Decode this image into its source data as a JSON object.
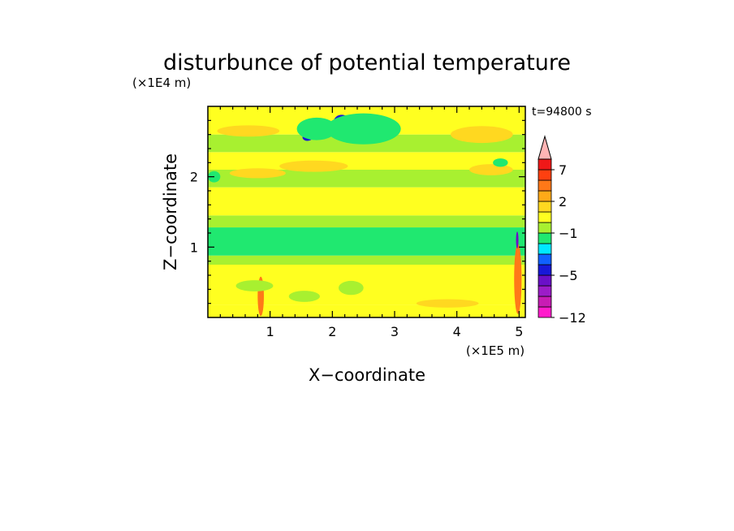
{
  "chart_data": {
    "type": "heatmap",
    "title": "disturbunce of potential temperature",
    "time_label": "t=94800 s",
    "xlabel": "X−coordinate",
    "ylabel": "Z−coordinate",
    "x_scale_label": "(×1E5 m)",
    "y_scale_label": "(×1E4 m)",
    "x_ticks": [
      "1",
      "2",
      "3",
      "4",
      "5"
    ],
    "x_tick_values": [
      1,
      2,
      3,
      4,
      5
    ],
    "y_ticks": [
      "1",
      "2"
    ],
    "y_tick_values": [
      1,
      2
    ],
    "xlim": [
      0,
      5.1
    ],
    "ylim": [
      0,
      3.0
    ],
    "colorbar": {
      "levels": [
        -12,
        -10,
        -8,
        -6,
        -5,
        -4,
        -3,
        -2,
        -1,
        0,
        1,
        2,
        3,
        5,
        7,
        9,
        12
      ],
      "labels": [
        "−12",
        "−5",
        "−1",
        "2",
        "7"
      ],
      "label_values": [
        -12,
        -5,
        -1,
        2,
        7
      ],
      "colors": [
        "#ff1ccc",
        "#c81cb4",
        "#9c1cc8",
        "#6a10c8",
        "#1818d8",
        "#1060ff",
        "#00e8ff",
        "#20e870",
        "#a8f030",
        "#ffff20",
        "#ffd820",
        "#ffaa18",
        "#ff7818",
        "#ff4010",
        "#f01818",
        "#ffb4b4"
      ],
      "extend": "max"
    },
    "bands": [
      {
        "z": [
          0.0,
          0.18
        ],
        "value": 0.5
      },
      {
        "z": [
          0.18,
          0.75
        ],
        "value": 0.5
      },
      {
        "z": [
          0.75,
          0.88
        ],
        "value": -0.3
      },
      {
        "z": [
          0.88,
          1.28
        ],
        "value": -1.5
      },
      {
        "z": [
          1.28,
          1.45
        ],
        "value": -0.3
      },
      {
        "z": [
          1.45,
          1.85
        ],
        "value": 0.5
      },
      {
        "z": [
          1.85,
          2.1
        ],
        "value": -0.3
      },
      {
        "z": [
          2.1,
          2.35
        ],
        "value": 0.5
      },
      {
        "z": [
          2.35,
          2.6
        ],
        "value": -0.3
      },
      {
        "z": [
          2.6,
          3.0
        ],
        "value": 0.5
      }
    ],
    "features": [
      {
        "x": 2.15,
        "z": 2.78,
        "rx": 0.13,
        "rz": 0.1,
        "value": -4.5
      },
      {
        "x": 2.65,
        "z": 2.6,
        "rx": 0.22,
        "rz": 0.09,
        "value": -4.5
      },
      {
        "x": 1.6,
        "z": 2.56,
        "rx": 0.08,
        "rz": 0.05,
        "value": -4.5
      },
      {
        "x": 1.75,
        "z": 2.68,
        "rx": 0.32,
        "rz": 0.16,
        "value": -1.5
      },
      {
        "x": 2.5,
        "z": 2.68,
        "rx": 0.6,
        "rz": 0.22,
        "value": -1.5
      },
      {
        "x": 0.65,
        "z": 2.65,
        "rx": 0.5,
        "rz": 0.08,
        "value": 1.5
      },
      {
        "x": 4.4,
        "z": 2.6,
        "rx": 0.5,
        "rz": 0.12,
        "value": 1.5
      },
      {
        "x": 1.7,
        "z": 2.15,
        "rx": 0.55,
        "rz": 0.08,
        "value": 1.5
      },
      {
        "x": 0.8,
        "z": 2.05,
        "rx": 0.45,
        "rz": 0.07,
        "value": 1.5
      },
      {
        "x": 4.55,
        "z": 2.1,
        "rx": 0.35,
        "rz": 0.08,
        "value": 1.5
      },
      {
        "x": 0.1,
        "z": 2.0,
        "rx": 0.1,
        "rz": 0.08,
        "value": -1.5
      },
      {
        "x": 4.7,
        "z": 2.2,
        "rx": 0.12,
        "rz": 0.06,
        "value": -1.5
      },
      {
        "x": 0.85,
        "z": 0.3,
        "rx": 0.05,
        "rz": 0.28,
        "value": 4.0
      },
      {
        "x": 4.98,
        "z": 0.55,
        "rx": 0.06,
        "rz": 0.5,
        "value": 4.0
      },
      {
        "x": 4.97,
        "z": 1.1,
        "rx": 0.02,
        "rz": 0.12,
        "value": -5.5
      },
      {
        "x": 0.75,
        "z": 0.45,
        "rx": 0.3,
        "rz": 0.08,
        "value": -0.3
      },
      {
        "x": 1.55,
        "z": 0.3,
        "rx": 0.25,
        "rz": 0.08,
        "value": -0.3
      },
      {
        "x": 2.3,
        "z": 0.42,
        "rx": 0.2,
        "rz": 0.1,
        "value": -0.3
      },
      {
        "x": 3.85,
        "z": 0.2,
        "rx": 0.5,
        "rz": 0.06,
        "value": 1.5
      }
    ]
  }
}
